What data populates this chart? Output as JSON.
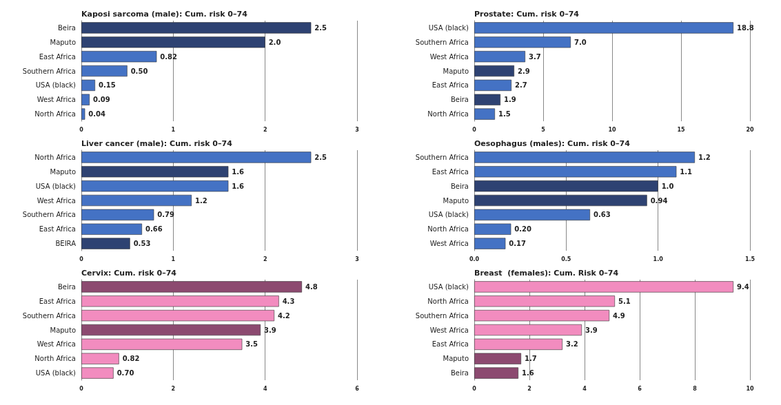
{
  "chart_data": [
    {
      "type": "bar",
      "orientation": "horizontal",
      "title": "Kaposi sarcoma (male): Cum. risk 0–74",
      "categories": [
        "Beira",
        "Maputo",
        "East Africa",
        "Southern Africa",
        "USA (black)",
        "West Africa",
        "North Africa"
      ],
      "values": [
        2.5,
        2.0,
        0.82,
        0.5,
        0.15,
        0.09,
        0.04
      ],
      "value_labels": [
        "2.5",
        "2.0",
        "0.82",
        "0.50",
        "0.15",
        "0.09",
        "0.04"
      ],
      "colors": [
        "#2e4272",
        "#2e4272",
        "#4472c4",
        "#4472c4",
        "#4472c4",
        "#4472c4",
        "#4472c4"
      ],
      "xlim": [
        0,
        3
      ],
      "xticks": [
        0,
        1,
        2,
        3
      ],
      "grid": "x"
    },
    {
      "type": "bar",
      "orientation": "horizontal",
      "title": "Prostate: Cum. risk 0–74",
      "categories": [
        "USA (black)",
        "Southern Africa",
        "West Africa",
        "Maputo",
        "East Africa",
        "Beira",
        "North Africa"
      ],
      "values": [
        18.8,
        7.0,
        3.7,
        2.9,
        2.7,
        1.9,
        1.5
      ],
      "value_labels": [
        "18.8",
        "7.0",
        "3.7",
        "2.9",
        "2.7",
        "1.9",
        "1.5"
      ],
      "colors": [
        "#4472c4",
        "#4472c4",
        "#4472c4",
        "#2e4272",
        "#4472c4",
        "#2e4272",
        "#4472c4"
      ],
      "xlim": [
        0,
        20
      ],
      "xticks": [
        0,
        5,
        10,
        15,
        20
      ],
      "grid": "x"
    },
    {
      "type": "bar",
      "orientation": "horizontal",
      "title": "Liver cancer (male): Cum. risk 0–74",
      "categories": [
        "North Africa",
        "Maputo",
        "USA (black)",
        "West Africa",
        "Southern Africa",
        "East Africa",
        "BEIRA"
      ],
      "values": [
        2.5,
        1.6,
        1.6,
        1.2,
        0.79,
        0.66,
        0.53
      ],
      "value_labels": [
        "2.5",
        "1.6",
        "1.6",
        "1.2",
        "0.79",
        "0.66",
        "0.53"
      ],
      "colors": [
        "#4472c4",
        "#2e4272",
        "#4472c4",
        "#4472c4",
        "#4472c4",
        "#4472c4",
        "#2e4272"
      ],
      "xlim": [
        0,
        3
      ],
      "xticks": [
        0,
        1,
        2,
        3
      ],
      "grid": "x"
    },
    {
      "type": "bar",
      "orientation": "horizontal",
      "title": "Oesophagus (males): Cum. risk 0–74",
      "categories": [
        "Southern Africa",
        "East Africa",
        "Beira",
        "Maputo",
        "USA (black)",
        "North Africa",
        "West Africa"
      ],
      "values": [
        1.2,
        1.1,
        1.0,
        0.94,
        0.63,
        0.2,
        0.17
      ],
      "value_labels": [
        "1.2",
        "1.1",
        "1.0",
        "0.94",
        "0.63",
        "0.20",
        "0.17"
      ],
      "colors": [
        "#4472c4",
        "#4472c4",
        "#2e4272",
        "#2e4272",
        "#4472c4",
        "#4472c4",
        "#4472c4"
      ],
      "xlim": [
        0,
        1.5
      ],
      "xticks": [
        {
          "value": 0,
          "label": "0.0"
        },
        {
          "value": 0.5,
          "label": "0.5"
        },
        {
          "value": 1,
          "label": "1.0"
        },
        {
          "value": 1.5,
          "label": "1.5"
        }
      ],
      "grid": "x"
    },
    {
      "type": "bar",
      "orientation": "horizontal",
      "title": "Cervix: Cum. risk 0–74",
      "categories": [
        "Beira",
        "East Africa",
        "Southern Africa",
        "Maputo",
        "West Africa",
        "North Africa",
        "USA (black)"
      ],
      "values": [
        4.8,
        4.3,
        4.2,
        3.9,
        3.5,
        0.82,
        0.7
      ],
      "value_labels": [
        "4.8",
        "4.3",
        "4.2",
        "3.9",
        "3.5",
        "0.82",
        "0.70"
      ],
      "colors": [
        "#8c4a70",
        "#f28cbf",
        "#f28cbf",
        "#8c4a70",
        "#f28cbf",
        "#f28cbf",
        "#f28cbf"
      ],
      "xlim": [
        0,
        6
      ],
      "xticks": [
        0,
        2,
        4,
        6
      ],
      "grid": "x"
    },
    {
      "type": "bar",
      "orientation": "horizontal",
      "title": "Breast  (females): Cum. Risk 0–74",
      "categories": [
        "USA (black)",
        "North Africa",
        "Southern Africa",
        "West Africa",
        "East Africa",
        "Maputo",
        "Beira"
      ],
      "values": [
        9.4,
        5.1,
        4.9,
        3.9,
        3.2,
        1.7,
        1.6
      ],
      "value_labels": [
        "9.4",
        "5.1",
        "4.9",
        "3.9",
        "3.2",
        "1.7",
        "1.6"
      ],
      "colors": [
        "#f28cbf",
        "#f28cbf",
        "#f28cbf",
        "#f28cbf",
        "#f28cbf",
        "#8c4a70",
        "#8c4a70"
      ],
      "xlim": [
        0,
        10
      ],
      "xticks": [
        0,
        2,
        4,
        6,
        8,
        10
      ],
      "grid": "x"
    }
  ]
}
